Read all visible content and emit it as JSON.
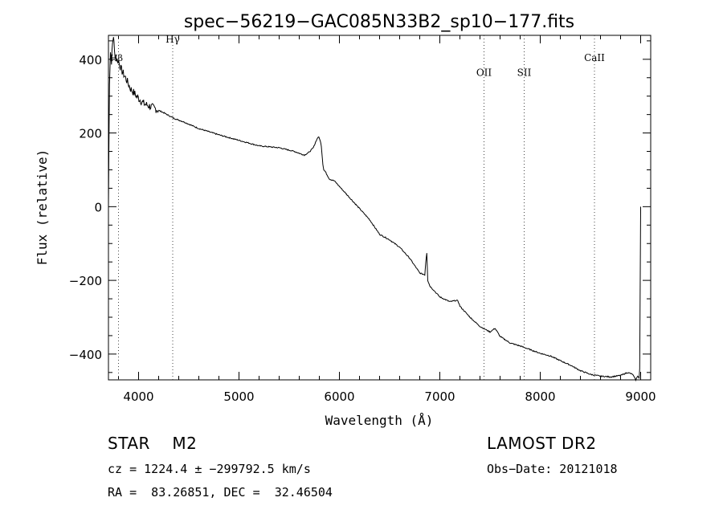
{
  "chart_data": {
    "type": "line",
    "title": "spec−56219−GAC085N33B2_sp10−177.fits",
    "xlabel": "Wavelength (Å)",
    "ylabel": "Flux (relative)",
    "xlim": [
      3700,
      9100
    ],
    "ylim": [
      -470,
      465
    ],
    "xticks": [
      4000,
      5000,
      6000,
      7000,
      8000,
      9000
    ],
    "yticks": [
      -400,
      -200,
      0,
      200,
      400
    ],
    "grid": false,
    "series": [
      {
        "x": [
          3700,
          3710,
          3720,
          3730,
          3740,
          3750,
          3760,
          3780,
          3800,
          3830,
          3870,
          3920,
          3980,
          4050,
          4150,
          4250,
          4350,
          4450,
          4600,
          4800,
          5000,
          5200,
          5400,
          5550,
          5650,
          5700,
          5740,
          5770,
          5790,
          5805,
          5820,
          5835,
          5845,
          5860,
          5900,
          5950,
          6000,
          6100,
          6200,
          6300,
          6400,
          6500,
          6600,
          6700,
          6800,
          6850,
          6860,
          6870,
          6880,
          6900,
          6950,
          7000,
          7100,
          7150,
          7180,
          7200,
          7250,
          7300,
          7400,
          7500,
          7550,
          7600,
          7700,
          7800,
          7900,
          8000,
          8100,
          8200,
          8300,
          8400,
          8500,
          8600,
          8700,
          8800,
          8870,
          8920,
          8950,
          8970,
          8985,
          8990,
          9000
        ],
        "y": [
          0,
          340,
          420,
          395,
          440,
          465,
          420,
          400,
          395,
          370,
          350,
          320,
          300,
          280,
          268,
          255,
          240,
          230,
          212,
          195,
          180,
          165,
          160,
          150,
          140,
          148,
          160,
          180,
          190,
          183,
          165,
          115,
          100,
          95,
          75,
          70,
          55,
          25,
          -5,
          -35,
          -75,
          -90,
          -110,
          -140,
          -180,
          -185,
          -150,
          -125,
          -200,
          -215,
          -230,
          -245,
          -258,
          -255,
          -255,
          -270,
          -285,
          -300,
          -325,
          -340,
          -330,
          -352,
          -370,
          -378,
          -388,
          -398,
          -405,
          -418,
          -430,
          -445,
          -455,
          -460,
          -462,
          -458,
          -450,
          -455,
          -470,
          -460,
          -465,
          -440,
          0
        ]
      }
    ],
    "annotations": [
      {
        "label": "Hγ",
        "x": 4340,
        "label_y": 445
      },
      {
        "label": "OII",
        "x": 7440,
        "label_y": 355
      },
      {
        "label": "SII",
        "x": 7840,
        "label_y": 355
      },
      {
        "label": "CaII",
        "x": 8540,
        "label_y": 395
      }
    ],
    "edge_label": "Hβ"
  },
  "info": {
    "object": "STAR    M2",
    "survey": "LAMOST DR2",
    "cz": "cz = 1224.4 ± −299792.5 km/s",
    "obs_date": "Obs−Date: 20121018",
    "radec": "RA =  83.26851, DEC =  32.46504"
  }
}
